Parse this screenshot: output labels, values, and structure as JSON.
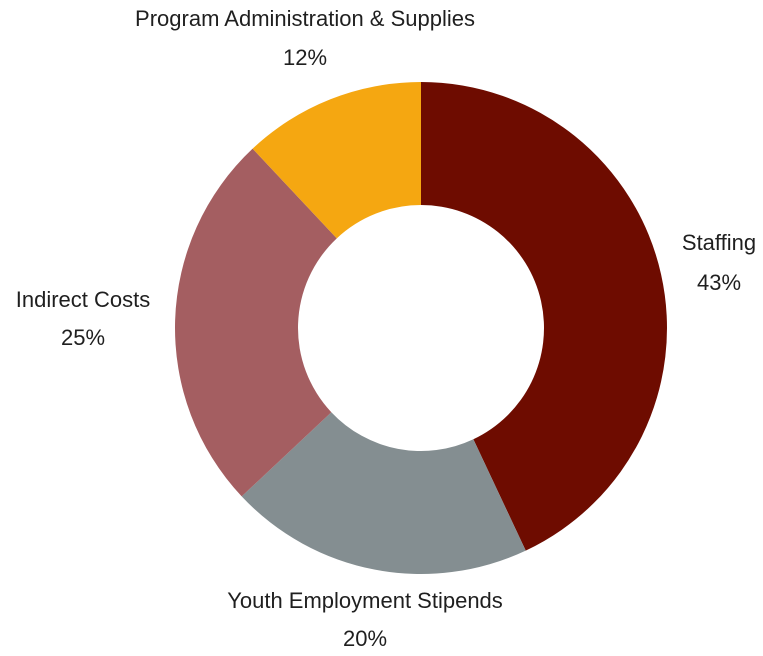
{
  "chart_data": {
    "type": "pie",
    "variant": "donut",
    "title": "",
    "slices": [
      {
        "label": "Staffing",
        "value": 43,
        "value_label": "43%",
        "color": "#6e0c00"
      },
      {
        "label": "Youth Employment Stipends",
        "value": 20,
        "value_label": "20%",
        "color": "#848e91"
      },
      {
        "label": "Indirect Costs",
        "value": 25,
        "value_label": "25%",
        "color": "#a45e61"
      },
      {
        "label": "Program Administration & Supplies",
        "value": 12,
        "value_label": "12%",
        "color": "#f5a711"
      }
    ],
    "start_angle": "top",
    "direction": "clockwise",
    "legend": "none",
    "labels": "outside"
  }
}
